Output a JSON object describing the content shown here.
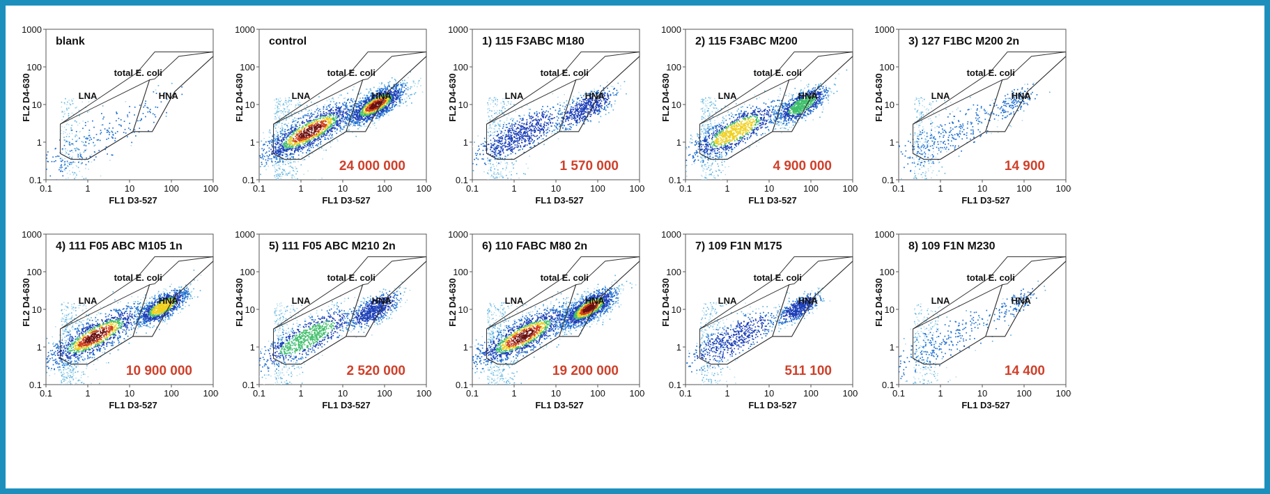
{
  "colors": {
    "frame": "#1d8fbd",
    "count_text": "#d0402a",
    "density_scale": [
      "#b8dff0",
      "#5fb3e0",
      "#1f6fd0",
      "#1c3fb8",
      "#3fbf6a",
      "#f0d020",
      "#d04020",
      "#6a1010"
    ]
  },
  "chart_data": [
    {
      "type": "scatter",
      "title": "blank",
      "xlabel": "FL1  D3-527",
      "ylabel": "FL2  D4-630",
      "x_scale": "log",
      "y_scale": "log",
      "xlim": [
        0.1,
        1000
      ],
      "ylim": [
        0.1,
        1000
      ],
      "x_ticks": [
        "0.1",
        "1",
        "10",
        "100",
        "1000"
      ],
      "y_ticks": [
        "0.1",
        "1",
        "10",
        "100",
        "1000"
      ],
      "gates": [
        "LNA",
        "HNA",
        "total E. coli"
      ],
      "count": "",
      "populations": [
        {
          "gate": "LNA",
          "center": [
            1.0,
            0.9
          ],
          "spread": [
            0.9,
            0.5
          ],
          "density": 0.12
        },
        {
          "gate": "HNA",
          "center": [
            40,
            10
          ],
          "spread": [
            0.4,
            0.3
          ],
          "density": 0.0
        }
      ]
    },
    {
      "type": "scatter",
      "title": "control",
      "xlabel": "FL1  D3-527",
      "ylabel": "FL2  D4-630",
      "x_scale": "log",
      "y_scale": "log",
      "xlim": [
        0.1,
        1000
      ],
      "ylim": [
        0.1,
        1000
      ],
      "x_ticks": [
        "0.1",
        "1",
        "10",
        "100",
        "1000"
      ],
      "y_ticks": [
        "0.1",
        "1",
        "10",
        "100",
        "1000"
      ],
      "gates": [
        "LNA",
        "HNA",
        "total E. coli"
      ],
      "count": "24 000 000",
      "populations": [
        {
          "gate": "LNA",
          "center": [
            1.6,
            2.0
          ],
          "spread": [
            0.6,
            0.4
          ],
          "density": 1.0
        },
        {
          "gate": "HNA",
          "center": [
            60,
            10
          ],
          "spread": [
            0.35,
            0.3
          ],
          "density": 1.0
        }
      ]
    },
    {
      "type": "scatter",
      "title": "1) 115 F3ABC M180",
      "xlabel": "FL1  D3-527",
      "ylabel": "FL2  D4-630",
      "x_scale": "log",
      "y_scale": "log",
      "xlim": [
        0.1,
        1000
      ],
      "ylim": [
        0.1,
        1000
      ],
      "x_ticks": [
        "0.1",
        "1",
        "10",
        "100",
        "1000"
      ],
      "y_ticks": [
        "0.1",
        "1",
        "10",
        "100",
        "1000"
      ],
      "gates": [
        "LNA",
        "HNA",
        "total E. coli"
      ],
      "count": "1 570 000",
      "populations": [
        {
          "gate": "LNA",
          "center": [
            1.3,
            1.6
          ],
          "spread": [
            0.55,
            0.4
          ],
          "density": 0.45
        },
        {
          "gate": "HNA",
          "center": [
            50,
            8
          ],
          "spread": [
            0.35,
            0.3
          ],
          "density": 0.35
        }
      ]
    },
    {
      "type": "scatter",
      "title": "2) 115 F3ABC M200",
      "xlabel": "FL1  D3-527",
      "ylabel": "FL2  D4-630",
      "x_scale": "log",
      "y_scale": "log",
      "xlim": [
        0.1,
        1000
      ],
      "ylim": [
        0.1,
        1000
      ],
      "x_ticks": [
        "0.1",
        "1",
        "10",
        "100",
        "1000"
      ],
      "y_ticks": [
        "0.1",
        "1",
        "10",
        "100",
        "1000"
      ],
      "gates": [
        "LNA",
        "HNA",
        "total E. coli"
      ],
      "count": "4 900 000",
      "populations": [
        {
          "gate": "LNA",
          "center": [
            1.5,
            2.0
          ],
          "spread": [
            0.55,
            0.4
          ],
          "density": 0.7
        },
        {
          "gate": "HNA",
          "center": [
            60,
            10
          ],
          "spread": [
            0.3,
            0.28
          ],
          "density": 0.6
        }
      ]
    },
    {
      "type": "scatter",
      "title": "3) 127 F1BC M200 2n",
      "xlabel": "FL1  D3-527",
      "ylabel": "FL2  D4-630",
      "x_scale": "log",
      "y_scale": "log",
      "xlim": [
        0.1,
        1000
      ],
      "ylim": [
        0.1,
        1000
      ],
      "x_ticks": [
        "0.1",
        "1",
        "10",
        "100",
        "1000"
      ],
      "y_ticks": [
        "0.1",
        "1",
        "10",
        "100",
        "1000"
      ],
      "gates": [
        "LNA",
        "HNA",
        "total E. coli"
      ],
      "count": "14 900",
      "populations": [
        {
          "gate": "LNA",
          "center": [
            1.2,
            1.3
          ],
          "spread": [
            0.7,
            0.45
          ],
          "density": 0.18
        },
        {
          "gate": "HNA",
          "center": [
            55,
            12
          ],
          "spread": [
            0.3,
            0.25
          ],
          "density": 0.08
        }
      ]
    },
    {
      "type": "scatter",
      "title": "4) 111 F05 ABC M105 1n",
      "xlabel": "FL1  D3-527",
      "ylabel": "FL2  D4-630",
      "x_scale": "log",
      "y_scale": "log",
      "xlim": [
        0.1,
        1000
      ],
      "ylim": [
        0.1,
        1000
      ],
      "x_ticks": [
        "0.1",
        "1",
        "10",
        "100",
        "1000"
      ],
      "y_ticks": [
        "0.1",
        "1",
        "10",
        "100",
        "1000"
      ],
      "gates": [
        "LNA",
        "HNA",
        "total E. coli"
      ],
      "count": "10 900 000",
      "populations": [
        {
          "gate": "LNA",
          "center": [
            1.5,
            2.0
          ],
          "spread": [
            0.6,
            0.4
          ],
          "density": 0.9
        },
        {
          "gate": "HNA",
          "center": [
            60,
            12
          ],
          "spread": [
            0.3,
            0.28
          ],
          "density": 0.75
        }
      ]
    },
    {
      "type": "scatter",
      "title": "5) 111 F05 ABC M210 2n",
      "xlabel": "FL1  D3-527",
      "ylabel": "FL2  D4-630",
      "x_scale": "log",
      "y_scale": "log",
      "xlim": [
        0.1,
        1000
      ],
      "ylim": [
        0.1,
        1000
      ],
      "x_ticks": [
        "0.1",
        "1",
        "10",
        "100",
        "1000"
      ],
      "y_ticks": [
        "0.1",
        "1",
        "10",
        "100",
        "1000"
      ],
      "gates": [
        "LNA",
        "HNA",
        "total E. coli"
      ],
      "count": "2 520 000",
      "populations": [
        {
          "gate": "LNA",
          "center": [
            1.4,
            1.8
          ],
          "spread": [
            0.6,
            0.4
          ],
          "density": 0.55
        },
        {
          "gate": "HNA",
          "center": [
            55,
            10
          ],
          "spread": [
            0.3,
            0.28
          ],
          "density": 0.45
        }
      ]
    },
    {
      "type": "scatter",
      "title": "6) 110 FABC M80 2n",
      "xlabel": "FL1  D3-527",
      "ylabel": "FL2  D4-630",
      "x_scale": "log",
      "y_scale": "log",
      "xlim": [
        0.1,
        1000
      ],
      "ylim": [
        0.1,
        1000
      ],
      "x_ticks": [
        "0.1",
        "1",
        "10",
        "100",
        "1000"
      ],
      "y_ticks": [
        "0.1",
        "1",
        "10",
        "100",
        "1000"
      ],
      "gates": [
        "LNA",
        "HNA",
        "total E. coli"
      ],
      "count": "19 200 000",
      "populations": [
        {
          "gate": "LNA",
          "center": [
            1.6,
            2.0
          ],
          "spread": [
            0.6,
            0.4
          ],
          "density": 1.0
        },
        {
          "gate": "HNA",
          "center": [
            60,
            11
          ],
          "spread": [
            0.33,
            0.3
          ],
          "density": 1.0
        }
      ]
    },
    {
      "type": "scatter",
      "title": "7) 109 F1N M175",
      "xlabel": "FL1  D3-527",
      "ylabel": "FL2  D4-630",
      "x_scale": "log",
      "y_scale": "log",
      "xlim": [
        0.1,
        1000
      ],
      "ylim": [
        0.1,
        1000
      ],
      "x_ticks": [
        "0.1",
        "1",
        "10",
        "100",
        "1000"
      ],
      "y_ticks": [
        "0.1",
        "1",
        "10",
        "100",
        "1000"
      ],
      "gates": [
        "LNA",
        "HNA",
        "total E. coli"
      ],
      "count": "511 100",
      "populations": [
        {
          "gate": "LNA",
          "center": [
            1.3,
            1.6
          ],
          "spread": [
            0.55,
            0.4
          ],
          "density": 0.35
        },
        {
          "gate": "HNA",
          "center": [
            50,
            11
          ],
          "spread": [
            0.25,
            0.22
          ],
          "density": 0.35
        }
      ]
    },
    {
      "type": "scatter",
      "title": "8) 109 F1N M230",
      "xlabel": "FL1  D3-527",
      "ylabel": "FL2  D4-630",
      "x_scale": "log",
      "y_scale": "log",
      "xlim": [
        0.1,
        1000
      ],
      "ylim": [
        0.1,
        1000
      ],
      "x_ticks": [
        "0.1",
        "1",
        "10",
        "100",
        "1000"
      ],
      "y_ticks": [
        "0.1",
        "1",
        "10",
        "100",
        "1000"
      ],
      "gates": [
        "LNA",
        "HNA",
        "total E. coli"
      ],
      "count": "14 400",
      "populations": [
        {
          "gate": "LNA",
          "center": [
            1.2,
            1.3
          ],
          "spread": [
            0.7,
            0.45
          ],
          "density": 0.15
        },
        {
          "gate": "HNA",
          "center": [
            60,
            14
          ],
          "spread": [
            0.3,
            0.25
          ],
          "density": 0.06
        }
      ]
    }
  ]
}
